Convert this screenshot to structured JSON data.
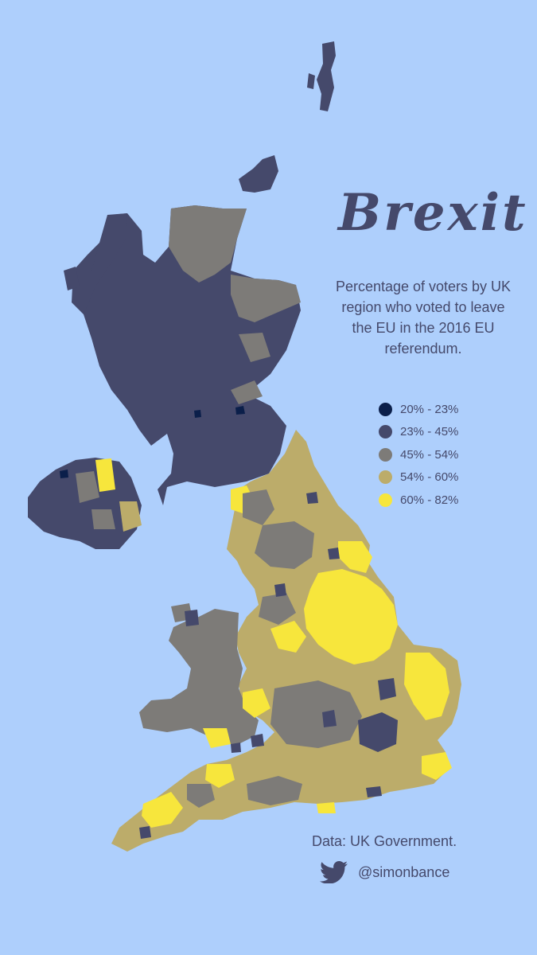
{
  "title": "Brexit",
  "subtitle": "Percentage of voters by UK region who voted to leave the EU in the 2016 EU referendum.",
  "legend": [
    {
      "label": "20% - 23%",
      "color": "#0b1f4a"
    },
    {
      "label": "23% - 45%",
      "color": "#45496b"
    },
    {
      "label": "45% - 54%",
      "color": "#7d7b78"
    },
    {
      "label": "54% - 60%",
      "color": "#bcac6a"
    },
    {
      "label": "60% - 82%",
      "color": "#f7e63c"
    }
  ],
  "source": "Data: UK Government.",
  "credit": {
    "handle": "@simonbance",
    "icon": "twitter-bird-icon"
  },
  "colors": {
    "background": "#aecffc",
    "text": "#45496b"
  }
}
